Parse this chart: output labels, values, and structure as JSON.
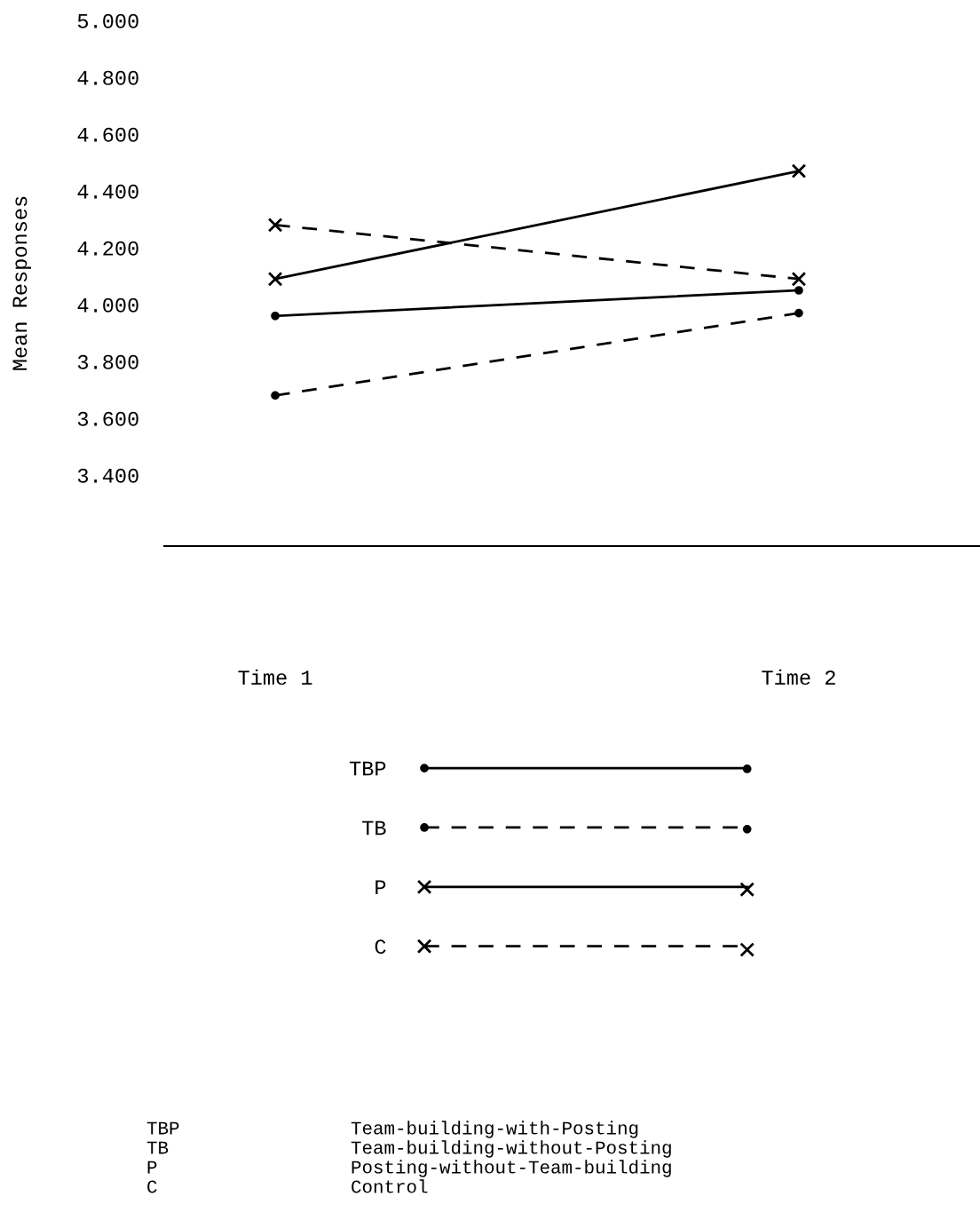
{
  "chart_data": {
    "type": "line",
    "ylabel": "Mean Responses",
    "categories": [
      "Time 1",
      "Time 2"
    ],
    "series": [
      {
        "name": "TBP",
        "color": "#000000",
        "values": [
          3.96,
          4.05
        ],
        "marker": "circle",
        "line_style": "solid"
      },
      {
        "name": "TB",
        "color": "#000000",
        "values": [
          3.68,
          3.97
        ],
        "marker": "circle",
        "line_style": "dashed"
      },
      {
        "name": "P",
        "color": "#000000",
        "values": [
          4.09,
          4.47
        ],
        "marker": "cross",
        "line_style": "solid"
      },
      {
        "name": "C",
        "color": "#000000",
        "values": [
          4.28,
          4.09
        ],
        "marker": "cross",
        "line_style": "dashed"
      }
    ],
    "ylim": [
      3.15,
      5.0
    ],
    "yticks": [
      {
        "value": 3.4,
        "label": "3.400"
      },
      {
        "value": 3.6,
        "label": "3.600"
      },
      {
        "value": 3.8,
        "label": "3.800"
      },
      {
        "value": 4.0,
        "label": "4.000"
      },
      {
        "value": 4.2,
        "label": "4.200"
      },
      {
        "value": 4.4,
        "label": "4.400"
      },
      {
        "value": 4.6,
        "label": "4.600"
      },
      {
        "value": 4.8,
        "label": "4.800"
      },
      {
        "value": 5.0,
        "label": "5.000"
      }
    ],
    "grid": false,
    "legend": "bottom",
    "annotations": [
      "TBP",
      "Team-building-with-Posting",
      "TB",
      "Team-building-without-Posting",
      "P",
      "Posting-without-Team-building",
      "C",
      "Control"
    ]
  }
}
